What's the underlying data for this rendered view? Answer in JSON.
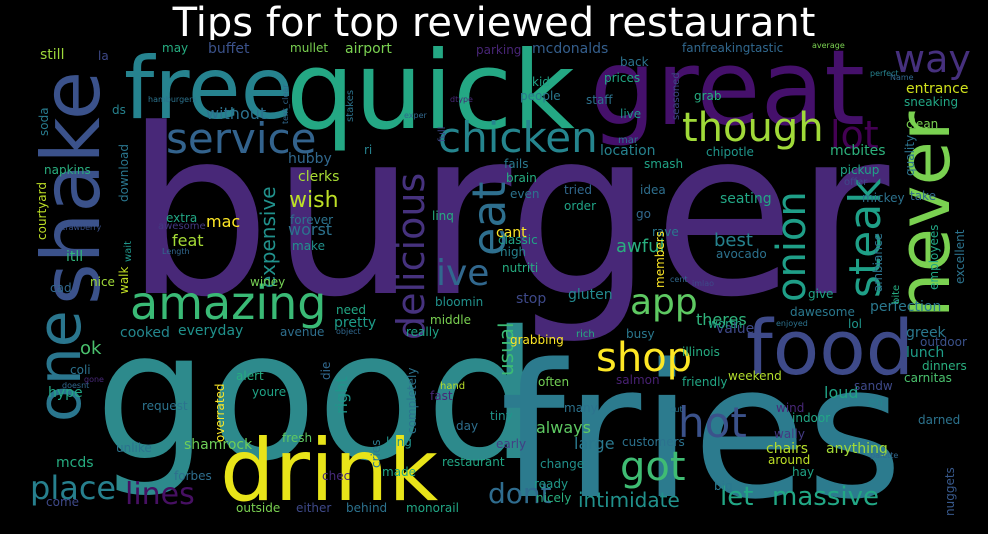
{
  "title": "Tips for top reviewed restaurant",
  "colors": {
    "background": "#000000",
    "title": "#ffffff"
  },
  "words": [
    {
      "text": "burger",
      "color": "#482878"
    },
    {
      "text": "good",
      "color": "#2d8a8c"
    },
    {
      "text": "fries",
      "color": "#2c7b8e"
    },
    {
      "text": "great",
      "color": "#45106b"
    },
    {
      "text": "quick",
      "color": "#24a884"
    },
    {
      "text": "free",
      "color": "#26838f"
    },
    {
      "text": "shake",
      "color": "#3b528b"
    },
    {
      "text": "drink",
      "color": "#e8e419"
    },
    {
      "text": "food",
      "color": "#3e4a89"
    },
    {
      "text": "never",
      "color": "#7ad151"
    },
    {
      "text": "one",
      "color": "#2a768e"
    },
    {
      "text": "amazing",
      "color": "#3aba76"
    },
    {
      "text": "service",
      "color": "#33638d"
    },
    {
      "text": "chicken",
      "color": "#25858e"
    },
    {
      "text": "though",
      "color": "#a0da39"
    },
    {
      "text": "delicious",
      "color": "#46327e"
    },
    {
      "text": "eat",
      "color": "#2e6f8e"
    },
    {
      "text": "onion",
      "color": "#1f9f88"
    },
    {
      "text": "steak",
      "color": "#1fa088"
    },
    {
      "text": "app",
      "color": "#5ec962"
    },
    {
      "text": "hot",
      "color": "#3b528b"
    },
    {
      "text": "shop",
      "color": "#fde725"
    },
    {
      "text": "got",
      "color": "#3fbc73"
    },
    {
      "text": "way",
      "color": "#46307e"
    },
    {
      "text": "lot",
      "color": "#440154"
    },
    {
      "text": "ive",
      "color": "#31688e"
    },
    {
      "text": "place",
      "color": "#27808e"
    },
    {
      "text": "lines",
      "color": "#471063"
    },
    {
      "text": "dont",
      "color": "#2f6c8e"
    },
    {
      "text": "let",
      "color": "#22a785"
    },
    {
      "text": "massive",
      "color": "#22a785"
    },
    {
      "text": "intimidate",
      "color": "#21918c"
    },
    {
      "text": "expensive",
      "color": "#21918c"
    },
    {
      "text": "wish",
      "color": "#bddf26"
    },
    {
      "text": "mac",
      "color": "#fde725"
    },
    {
      "text": "worst",
      "color": "#2c728e"
    },
    {
      "text": "feat",
      "color": "#a5db36"
    },
    {
      "text": "awful",
      "color": "#29af7f"
    },
    {
      "text": "best",
      "color": "#26828e"
    },
    {
      "text": "usual",
      "color": "#3bbb75"
    },
    {
      "text": "ok",
      "color": "#4ac16d"
    },
    {
      "text": "theres",
      "color": "#2fb47c"
    },
    {
      "text": "value",
      "color": "#3e4989"
    },
    {
      "text": "perfection",
      "color": "#2a788e"
    },
    {
      "text": "lunch",
      "color": "#1f9e89"
    },
    {
      "text": "greek",
      "color": "#2a788e"
    },
    {
      "text": "loud",
      "color": "#20a386"
    },
    {
      "text": "right",
      "color": "#1f968b"
    },
    {
      "text": "without",
      "color": "#2c718e"
    },
    {
      "text": "buffet",
      "color": "#3b528b"
    },
    {
      "text": "airport",
      "color": "#7ad151"
    },
    {
      "text": "mcdonalds",
      "color": "#355f8d"
    },
    {
      "text": "parking",
      "color": "#482576"
    },
    {
      "text": "entrance",
      "color": "#d0e11c"
    },
    {
      "text": "location",
      "color": "#26828e"
    },
    {
      "text": "mcbites",
      "color": "#2db27d"
    },
    {
      "text": "hubby",
      "color": "#31688e"
    },
    {
      "text": "clerks",
      "color": "#a8db34"
    },
    {
      "text": "cant",
      "color": "#fde725"
    },
    {
      "text": "cooked",
      "color": "#24878e"
    },
    {
      "text": "everyday",
      "color": "#20928c"
    },
    {
      "text": "pretty",
      "color": "#1e9c89"
    },
    {
      "text": "stop",
      "color": "#3e4989"
    },
    {
      "text": "gluten",
      "color": "#23898e"
    },
    {
      "text": "anything",
      "color": "#a2da37"
    },
    {
      "text": "weekend",
      "color": "#b2dd2d"
    },
    {
      "text": "always",
      "color": "#5ec962"
    },
    {
      "text": "large",
      "color": "#2a788e"
    },
    {
      "text": "request",
      "color": "#2c738e"
    },
    {
      "text": "shamrock",
      "color": "#6ece58"
    },
    {
      "text": "fresh",
      "color": "#5ec962"
    },
    {
      "text": "restaurant",
      "color": "#21a685"
    },
    {
      "text": "mcds",
      "color": "#26ad81"
    },
    {
      "text": "hype",
      "color": "#22a785"
    },
    {
      "text": "forbes",
      "color": "#2e6e8e"
    },
    {
      "text": "chairs",
      "color": "#b5de2b"
    },
    {
      "text": "wally",
      "color": "#443a83"
    },
    {
      "text": "around",
      "color": "#bddf26"
    },
    {
      "text": "carnitas",
      "color": "#4ac16d"
    },
    {
      "text": "sandw",
      "color": "#3e4989"
    },
    {
      "text": "indoor",
      "color": "#22a785"
    },
    {
      "text": "darned",
      "color": "#2c738e"
    },
    {
      "text": "nuggets",
      "color": "#38598c"
    },
    {
      "text": "soda",
      "color": "#287c8e"
    },
    {
      "text": "still",
      "color": "#9dd93b"
    },
    {
      "text": "napkins",
      "color": "#29af7f"
    },
    {
      "text": "courtyard",
      "color": "#bddf26"
    },
    {
      "text": "strawberry",
      "color": "#3b528b"
    },
    {
      "text": "itll",
      "color": "#31b57b"
    },
    {
      "text": "cad",
      "color": "#31688e"
    },
    {
      "text": "nice",
      "color": "#a0da39"
    },
    {
      "text": "coli",
      "color": "#2c728e"
    },
    {
      "text": "walk",
      "color": "#c2df23"
    },
    {
      "text": "download",
      "color": "#2a768e"
    },
    {
      "text": "extra",
      "color": "#22a785"
    },
    {
      "text": "awesome",
      "color": "#443983"
    },
    {
      "text": "winey",
      "color": "#75d054"
    },
    {
      "text": "need",
      "color": "#22a785"
    },
    {
      "text": "avenue",
      "color": "#2e6f8e"
    },
    {
      "text": "bloomin",
      "color": "#21918c"
    },
    {
      "text": "middle",
      "color": "#7ad151"
    },
    {
      "text": "really",
      "color": "#20a386"
    },
    {
      "text": "grabbing",
      "color": "#fde725"
    },
    {
      "text": "illinois",
      "color": "#25ac82"
    },
    {
      "text": "outdoor",
      "color": "#3b528b"
    },
    {
      "text": "dinners",
      "color": "#29af7f"
    },
    {
      "text": "friendly",
      "color": "#22a785"
    },
    {
      "text": "salmon",
      "color": "#482173"
    },
    {
      "text": "often",
      "color": "#73d055"
    },
    {
      "text": "many",
      "color": "#2c738e"
    },
    {
      "text": "tiny",
      "color": "#1f968b"
    },
    {
      "text": "day",
      "color": "#2e6f8e"
    },
    {
      "text": "early",
      "color": "#433e85"
    },
    {
      "text": "customers",
      "color": "#2c728e"
    },
    {
      "text": "change",
      "color": "#21918c"
    },
    {
      "text": "ready",
      "color": "#1f998a"
    },
    {
      "text": "nicely",
      "color": "#29af7f"
    },
    {
      "text": "big",
      "color": "#2a788e"
    },
    {
      "text": "made",
      "color": "#22a785"
    },
    {
      "text": "long",
      "color": "#20928c"
    },
    {
      "text": "outside",
      "color": "#7ad151"
    },
    {
      "text": "either",
      "color": "#3e4989"
    },
    {
      "text": "behind",
      "color": "#2c728e"
    },
    {
      "text": "monorail",
      "color": "#22a785"
    },
    {
      "text": "come",
      "color": "#3e4989"
    },
    {
      "text": "unlike",
      "color": "#2c738e"
    },
    {
      "text": "alert",
      "color": "#26ad81"
    },
    {
      "text": "youre",
      "color": "#20a386"
    },
    {
      "text": "overrated",
      "color": "#fde725"
    },
    {
      "text": "die",
      "color": "#31688e"
    },
    {
      "text": "completely",
      "color": "#2c738e"
    },
    {
      "text": "fast",
      "color": "#482878"
    },
    {
      "text": "hand",
      "color": "#b8de29"
    },
    {
      "text": "cries",
      "color": "#2a788e"
    },
    {
      "text": "chec",
      "color": "#472a7a"
    },
    {
      "text": "kid",
      "color": "#20a386"
    },
    {
      "text": "people",
      "color": "#2a788e"
    },
    {
      "text": "prices",
      "color": "#22a785"
    },
    {
      "text": "staff",
      "color": "#2c728e"
    },
    {
      "text": "grab",
      "color": "#26ad81"
    },
    {
      "text": "live",
      "color": "#1f968b"
    },
    {
      "text": "back",
      "color": "#2c738e"
    },
    {
      "text": "seasoned",
      "color": "#3e4989"
    },
    {
      "text": "mar",
      "color": "#2c738e"
    },
    {
      "text": "smash",
      "color": "#20a386"
    },
    {
      "text": "chipotle",
      "color": "#1f968b"
    },
    {
      "text": "fails",
      "color": "#2a788e"
    },
    {
      "text": "brain",
      "color": "#26ad81"
    },
    {
      "text": "even",
      "color": "#2c738e"
    },
    {
      "text": "tried",
      "color": "#31688e"
    },
    {
      "text": "idea",
      "color": "#2e6f8e"
    },
    {
      "text": "order",
      "color": "#20a386"
    },
    {
      "text": "seating",
      "color": "#22a785"
    },
    {
      "text": "go",
      "color": "#31688e"
    },
    {
      "text": "rave",
      "color": "#2a788e"
    },
    {
      "text": "classic",
      "color": "#20a386"
    },
    {
      "text": "high",
      "color": "#26828e"
    },
    {
      "text": "nutriti",
      "color": "#26ad81"
    },
    {
      "text": "members",
      "color": "#fde725"
    },
    {
      "text": "avocado",
      "color": "#2c728e"
    },
    {
      "text": "linq",
      "color": "#26ad81"
    },
    {
      "text": "forever",
      "color": "#2c738e"
    },
    {
      "text": "make",
      "color": "#21918c"
    },
    {
      "text": "wait",
      "color": "#1f968b"
    },
    {
      "text": "Length",
      "color": "#31688e"
    },
    {
      "text": "mullet",
      "color": "#7ad151"
    },
    {
      "text": "fanfreakingtastic",
      "color": "#31688e"
    },
    {
      "text": "average",
      "color": "#7ad151"
    },
    {
      "text": "perfect",
      "color": "#26828e"
    },
    {
      "text": "sneaking",
      "color": "#22a785"
    },
    {
      "text": "clean",
      "color": "#7ad151"
    },
    {
      "text": "quality",
      "color": "#2c738e"
    },
    {
      "text": "pickup",
      "color": "#20a386"
    },
    {
      "text": "offer",
      "color": "#3e4989"
    },
    {
      "text": "mickey",
      "color": "#2c728e"
    },
    {
      "text": "take",
      "color": "#31688e"
    },
    {
      "text": "excellent",
      "color": "#2c738e"
    },
    {
      "text": "employees",
      "color": "#22a785"
    },
    {
      "text": "ambiance",
      "color": "#2c738e"
    },
    {
      "text": "give",
      "color": "#20a386"
    },
    {
      "text": "dawesome",
      "color": "#2a788e"
    },
    {
      "text": "lol",
      "color": "#1f968b"
    },
    {
      "text": "enjoyed",
      "color": "#2c728e"
    },
    {
      "text": "bite",
      "color": "#26ad81"
    },
    {
      "text": "worth",
      "color": "#22a785"
    },
    {
      "text": "busy",
      "color": "#2a788e"
    },
    {
      "text": "rich",
      "color": "#26ad81"
    },
    {
      "text": "imlao",
      "color": "#3e4989"
    },
    {
      "text": "cent",
      "color": "#31688e"
    },
    {
      "text": "eh",
      "color": "#26828e"
    },
    {
      "text": "wind",
      "color": "#482878"
    },
    {
      "text": "hay",
      "color": "#20a386"
    },
    {
      "text": "palette",
      "color": "#31688e"
    },
    {
      "text": "cut",
      "color": "#2c738e"
    },
    {
      "text": "doesnt",
      "color": "#31688e"
    },
    {
      "text": "gone",
      "color": "#482878"
    },
    {
      "text": "object",
      "color": "#31688e"
    },
    {
      "text": "ri",
      "color": "#26828e"
    },
    {
      "text": "hamburgers",
      "color": "#2c738e"
    },
    {
      "text": "text_clear",
      "color": "#31688e"
    },
    {
      "text": "stakes",
      "color": "#2c738e"
    },
    {
      "text": "exper",
      "color": "#31688e"
    },
    {
      "text": "dtype",
      "color": "#482878"
    },
    {
      "text": "full",
      "color": "#3e4989"
    },
    {
      "text": "ds",
      "color": "#26828e"
    },
    {
      "text": "la",
      "color": "#3e4989"
    },
    {
      "text": "may",
      "color": "#26ad81"
    },
    {
      "text": "Name",
      "color": "#31688e"
    }
  ]
}
